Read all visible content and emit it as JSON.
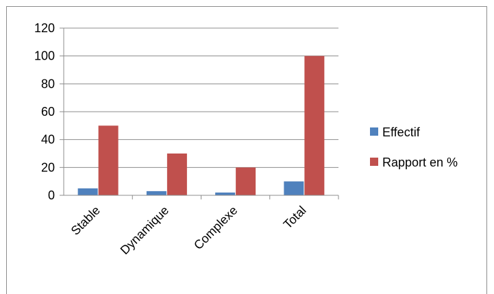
{
  "chart_data": {
    "type": "bar",
    "categories": [
      "Stable",
      "Dynamique",
      "Complexe",
      "Total"
    ],
    "series": [
      {
        "name": "Effectif",
        "values": [
          5,
          3,
          2,
          10
        ],
        "color": "#4F81BD"
      },
      {
        "name": "Rapport en %",
        "values": [
          50,
          30,
          20,
          100
        ],
        "color": "#C0504D"
      }
    ],
    "yticks": [
      "0",
      "20",
      "40",
      "60",
      "80",
      "100",
      "120"
    ],
    "ylim": [
      0,
      120
    ],
    "grid": true,
    "legend_position": "right"
  }
}
